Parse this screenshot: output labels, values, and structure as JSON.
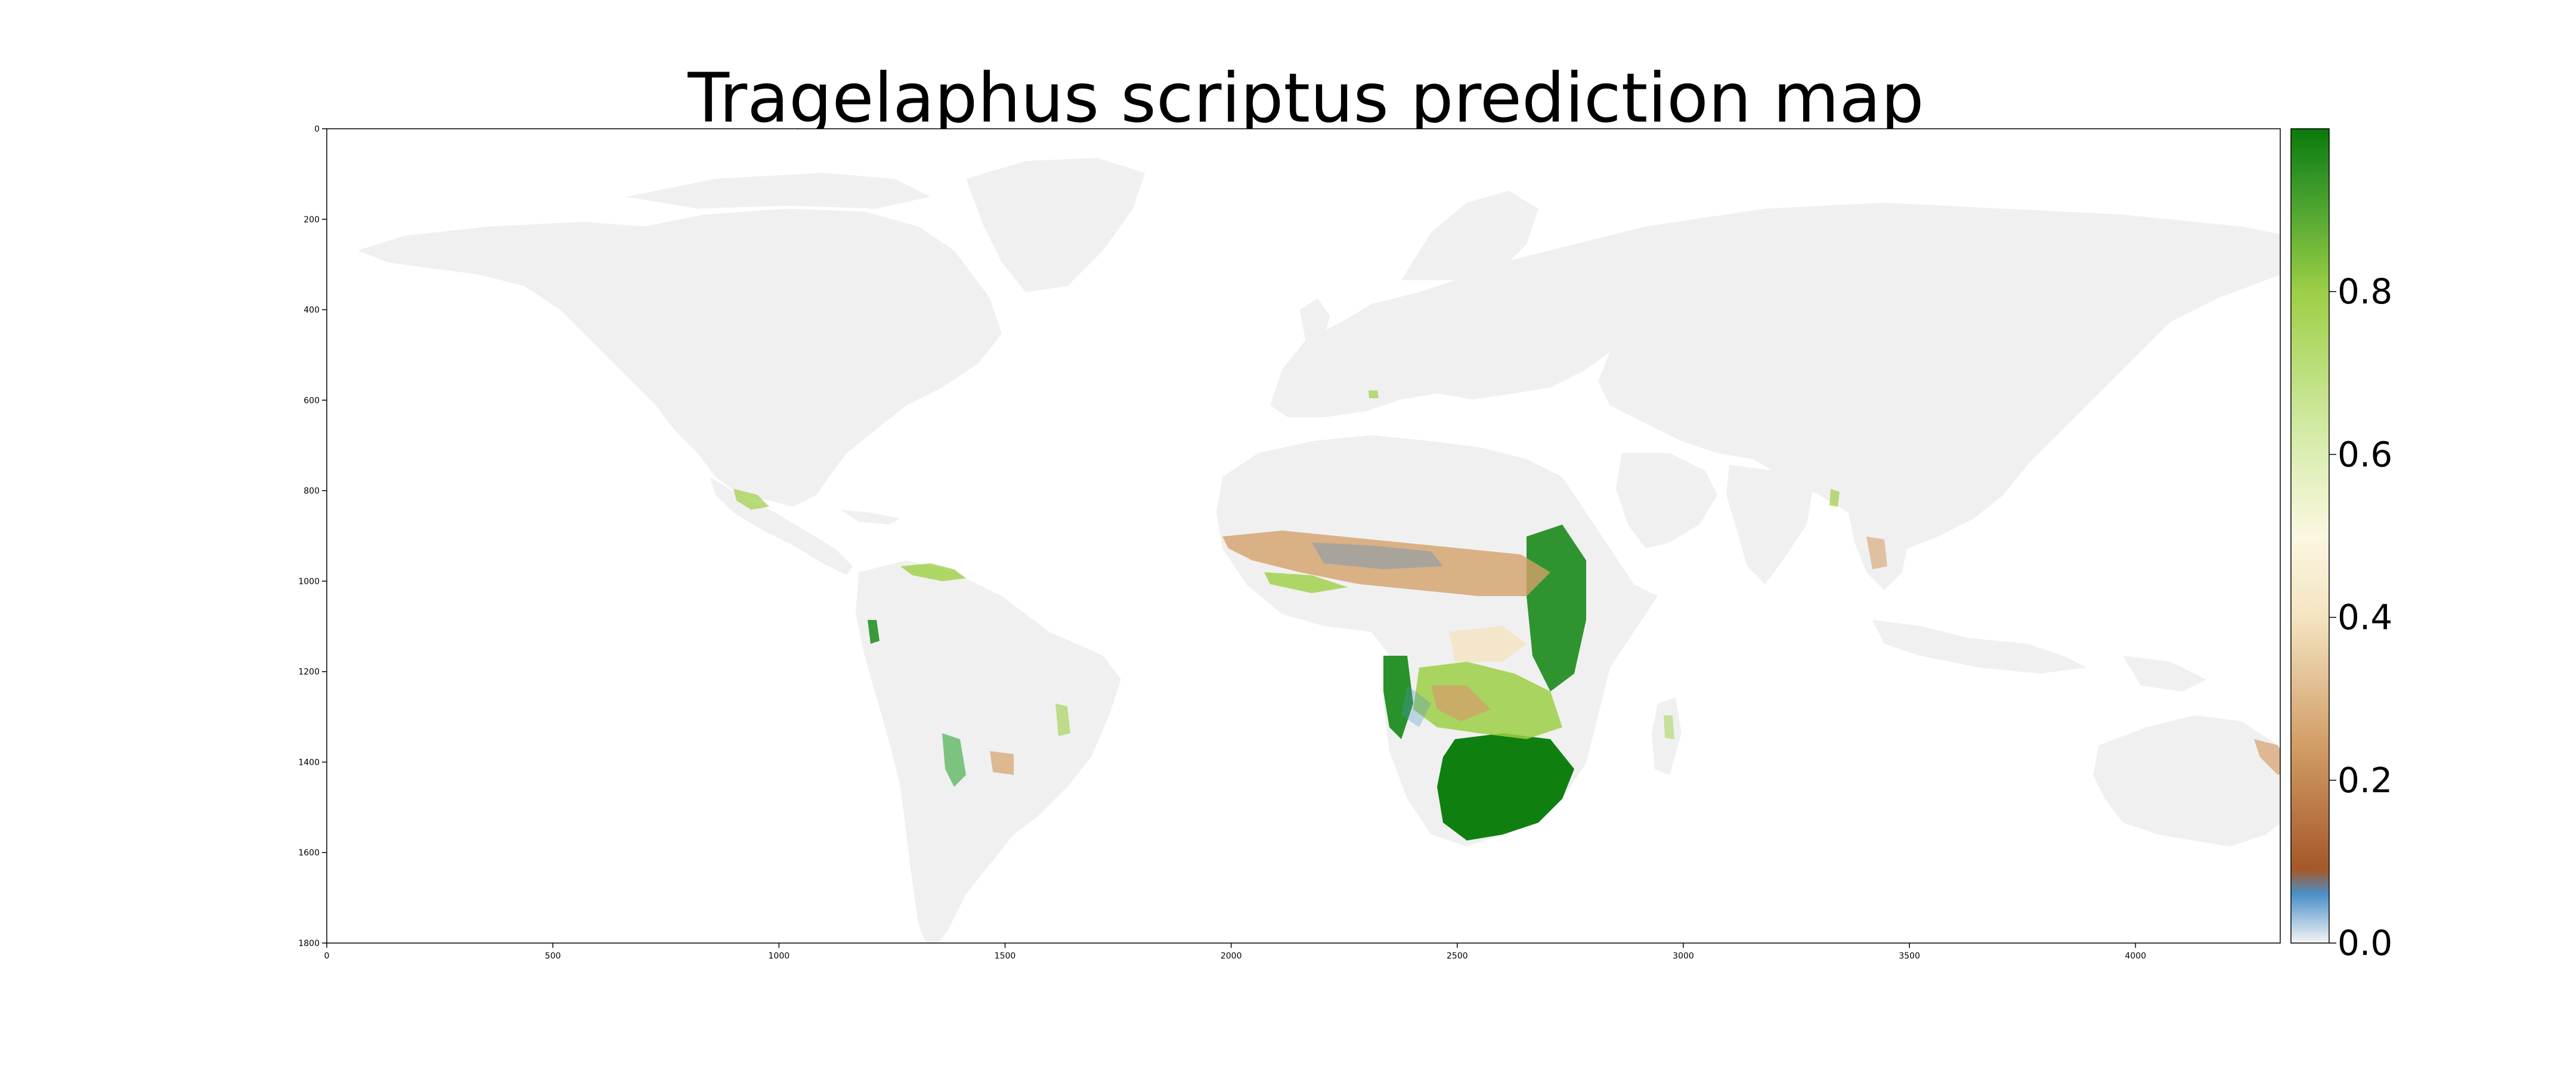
{
  "title": "Tragelaphus scriptus prediction map",
  "map": {
    "x_ticks": [
      "0",
      "500",
      "1000",
      "1500",
      "2000",
      "2500",
      "3000",
      "3500",
      "4000"
    ],
    "y_ticks": [
      "0",
      "200",
      "400",
      "600",
      "800",
      "1000",
      "1200",
      "1400",
      "1600",
      "1800"
    ],
    "xlim": [
      0,
      4320
    ],
    "ylim": [
      0,
      1800
    ],
    "land_color": "#f0f0f0",
    "background_color": "#ffffff"
  },
  "colorbar": {
    "ticks": [
      "0.0",
      "0.2",
      "0.4",
      "0.6",
      "0.8"
    ],
    "range": [
      0,
      1
    ],
    "colormap": [
      "#f5f5f5",
      "#4a90c8",
      "#a5582a",
      "#d4a06a",
      "#f4e4c1",
      "#fbf7e1",
      "#d6ecaa",
      "#9ccf45",
      "#1a8a1a",
      "#0a7a0a"
    ]
  },
  "colors": {
    "high": "#1a8a1a",
    "mid_high": "#9ccf45",
    "mid": "#f4e4c1",
    "low": "#a5582a",
    "very_low": "#4a90c8"
  }
}
